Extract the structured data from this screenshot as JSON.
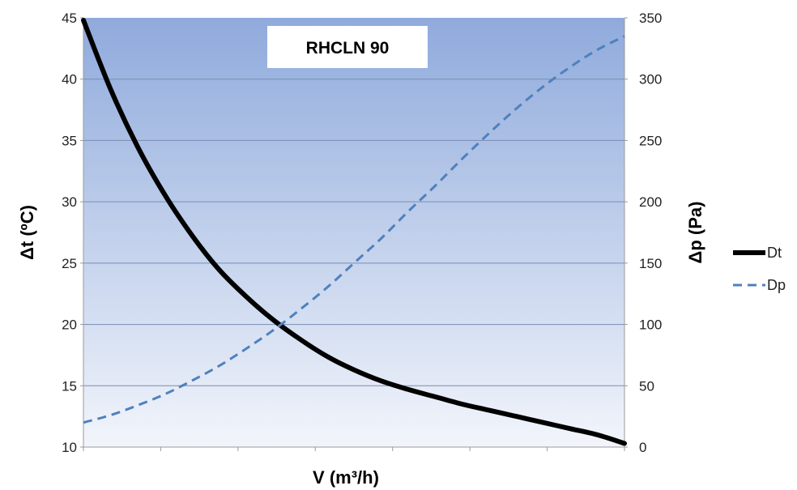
{
  "chart_data": {
    "type": "line",
    "title": "RHCLN 90",
    "xlabel": "V (m³/h)",
    "ylabel_left": "Δt (ºC)",
    "ylabel_right": "Δp (Pa)",
    "x_ticks_labeled": false,
    "x_range": [
      0,
      100
    ],
    "ylim_left": [
      10,
      45
    ],
    "ylim_right": [
      0,
      350
    ],
    "yticks_left": [
      "10",
      "15",
      "20",
      "25",
      "30",
      "35",
      "40",
      "45"
    ],
    "yticks_right": [
      "0",
      "50",
      "100",
      "150",
      "200",
      "250",
      "300",
      "350"
    ],
    "grid": true,
    "legend_position": "right",
    "background_gradient": {
      "top": "#8faadc",
      "bottom": "#f2f5fb"
    },
    "series": [
      {
        "name": "Dt",
        "axis": "left",
        "style": "solid",
        "color": "#000000",
        "x": [
          0,
          5,
          10,
          15,
          20,
          25,
          30,
          35,
          40,
          45,
          50,
          55,
          60,
          65,
          70,
          75,
          80,
          85,
          90,
          95,
          100
        ],
        "y": [
          44.8,
          39.2,
          34.5,
          30.6,
          27.3,
          24.5,
          22.3,
          20.4,
          18.8,
          17.4,
          16.3,
          15.4,
          14.7,
          14.1,
          13.5,
          13.0,
          12.5,
          12.0,
          11.5,
          11.0,
          10.3
        ]
      },
      {
        "name": "Dp",
        "axis": "right",
        "style": "dashed",
        "color": "#4f81bd",
        "x": [
          0,
          5,
          10,
          15,
          20,
          25,
          30,
          35,
          40,
          45,
          50,
          55,
          60,
          65,
          70,
          75,
          80,
          85,
          90,
          95,
          100
        ],
        "y": [
          20,
          26,
          34,
          43,
          54,
          66,
          80,
          95,
          112,
          130,
          150,
          170,
          192,
          213,
          235,
          256,
          276,
          294,
          310,
          324,
          335
        ]
      }
    ]
  }
}
